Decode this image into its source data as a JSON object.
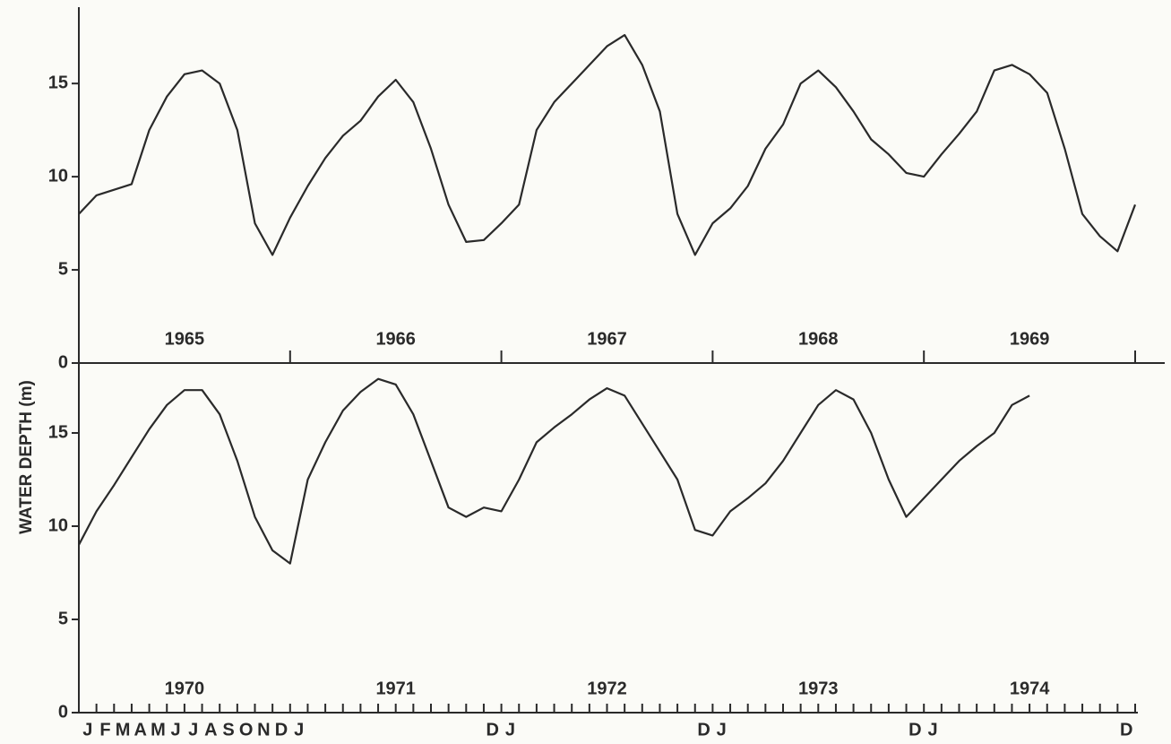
{
  "chart_data": [
    {
      "type": "line",
      "ylabel": "WATER DEPTH (m)",
      "year_labels": [
        "1965",
        "1966",
        "1967",
        "1968",
        "1969"
      ],
      "xlim": [
        0,
        60
      ],
      "xticks": [
        0,
        12,
        24,
        36,
        48,
        60
      ],
      "ylim": [
        0,
        19
      ],
      "yticks": [
        0,
        5,
        10,
        15
      ],
      "x": [
        0,
        1,
        2,
        3,
        4,
        5,
        6,
        7,
        8,
        9,
        10,
        11,
        12,
        13,
        14,
        15,
        16,
        17,
        18,
        19,
        20,
        21,
        22,
        23,
        24,
        25,
        26,
        27,
        28,
        29,
        30,
        31,
        32,
        33,
        34,
        35,
        36,
        37,
        38,
        39,
        40,
        41,
        42,
        43,
        44,
        45,
        46,
        47,
        48,
        49,
        50,
        51,
        52,
        53,
        54,
        55,
        56,
        57,
        58,
        59,
        60
      ],
      "color": "#2a2a2a",
      "values": [
        8.0,
        9.0,
        9.3,
        9.6,
        12.5,
        14.3,
        15.5,
        15.7,
        15.0,
        12.5,
        7.5,
        5.8,
        7.8,
        9.5,
        11.0,
        12.2,
        13.0,
        14.3,
        15.2,
        14.0,
        11.5,
        8.5,
        6.5,
        6.6,
        7.5,
        8.5,
        12.5,
        14.0,
        15.0,
        16.0,
        17.0,
        17.6,
        16.0,
        13.5,
        8.0,
        5.8,
        7.5,
        8.3,
        9.5,
        11.5,
        12.8,
        15.0,
        15.7,
        14.8,
        13.5,
        12.0,
        11.2,
        10.2,
        10.0,
        11.2,
        12.3,
        13.5,
        15.7,
        16.0,
        15.5,
        14.5,
        11.5,
        8.0,
        6.8,
        6.0,
        8.5
      ]
    },
    {
      "type": "line",
      "year_labels": [
        "1970",
        "1971",
        "1972",
        "1973",
        "1974"
      ],
      "xlim": [
        0,
        60
      ],
      "xticks": [
        0,
        1,
        2,
        3,
        4,
        5,
        6,
        7,
        8,
        9,
        10,
        11,
        12,
        13,
        14,
        15,
        16,
        17,
        18,
        19,
        20,
        21,
        22,
        23,
        24,
        25,
        26,
        27,
        28,
        29,
        30,
        31,
        32,
        33,
        34,
        35,
        36,
        37,
        38,
        39,
        40,
        41,
        42,
        43,
        44,
        45,
        46,
        47,
        48,
        49,
        50,
        51,
        52,
        53,
        54,
        55,
        56,
        57,
        58,
        59,
        60
      ],
      "xtick_labels": [
        {
          "value": 0.5,
          "label": "J"
        },
        {
          "value": 1.5,
          "label": "F"
        },
        {
          "value": 2.5,
          "label": "M"
        },
        {
          "value": 3.5,
          "label": "A"
        },
        {
          "value": 4.5,
          "label": "M"
        },
        {
          "value": 5.5,
          "label": "J"
        },
        {
          "value": 6.5,
          "label": "J"
        },
        {
          "value": 7.5,
          "label": "A"
        },
        {
          "value": 8.5,
          "label": "S"
        },
        {
          "value": 9.5,
          "label": "O"
        },
        {
          "value": 10.5,
          "label": "N"
        },
        {
          "value": 11.5,
          "label": "D"
        },
        {
          "value": 12.5,
          "label": "J"
        },
        {
          "value": 23.5,
          "label": "D"
        },
        {
          "value": 24.5,
          "label": "J"
        },
        {
          "value": 35.5,
          "label": "D"
        },
        {
          "value": 36.5,
          "label": "J"
        },
        {
          "value": 47.5,
          "label": "D"
        },
        {
          "value": 48.5,
          "label": "J"
        },
        {
          "value": 59.5,
          "label": "D"
        }
      ],
      "ylim": [
        0,
        18.75
      ],
      "yticks": [
        0,
        5,
        10,
        15
      ],
      "x": [
        0,
        1,
        2,
        3,
        4,
        5,
        6,
        7,
        8,
        9,
        10,
        11,
        12,
        13,
        14,
        15,
        16,
        17,
        18,
        19,
        20,
        21,
        22,
        23,
        24,
        25,
        26,
        27,
        28,
        29,
        30,
        31,
        32,
        33,
        34,
        35,
        36,
        37,
        38,
        39,
        40,
        41,
        42,
        43,
        44,
        45,
        46,
        47,
        48,
        49,
        50,
        51,
        52,
        53,
        54
      ],
      "color": "#2a2a2a",
      "values": [
        9.0,
        10.8,
        12.2,
        13.7,
        15.2,
        16.5,
        17.3,
        17.3,
        16.0,
        13.5,
        10.5,
        8.7,
        8.0,
        12.5,
        14.5,
        16.2,
        17.2,
        17.9,
        17.6,
        16.0,
        13.5,
        11.0,
        10.5,
        11.0,
        10.8,
        12.5,
        14.5,
        15.3,
        16.0,
        16.8,
        17.4,
        17.0,
        15.5,
        14.0,
        12.5,
        9.8,
        9.5,
        10.8,
        11.5,
        12.3,
        13.5,
        15.0,
        16.5,
        17.3,
        16.8,
        15.0,
        12.5,
        10.5,
        11.5,
        12.5,
        13.5,
        14.3,
        15.0,
        16.5,
        17.0
      ]
    }
  ]
}
